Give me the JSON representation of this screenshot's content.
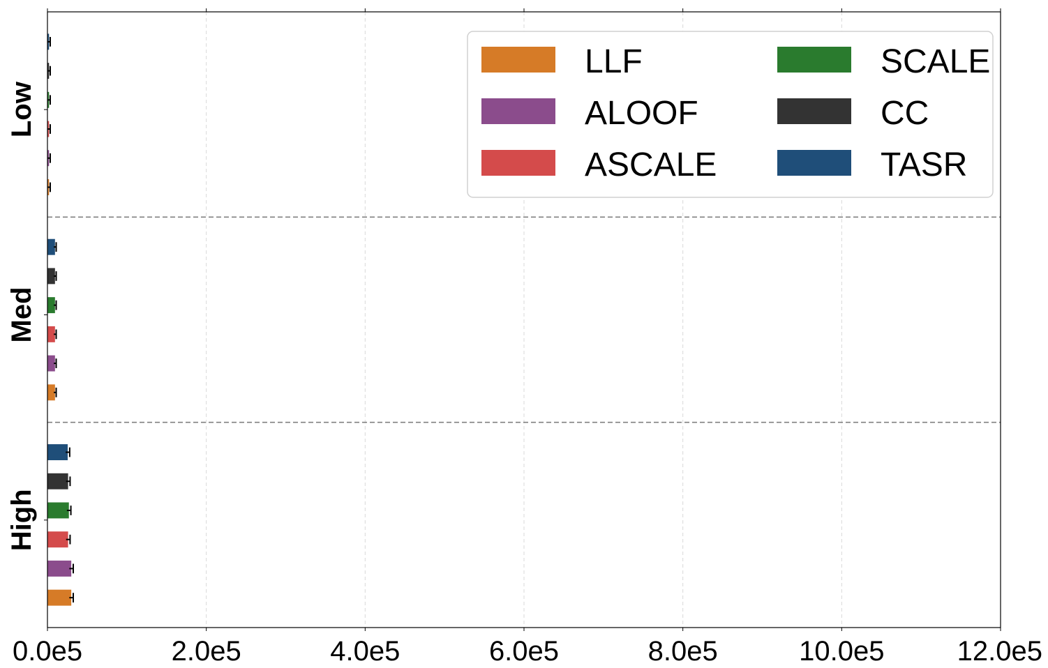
{
  "chart_data": {
    "type": "bar",
    "orientation": "horizontal",
    "title": "",
    "xlabel": "",
    "ylabel": "",
    "xlim": [
      0,
      1200000
    ],
    "x_ticks": [
      {
        "value": 0,
        "label": "0.0e5"
      },
      {
        "value": 200000,
        "label": "2.0e5"
      },
      {
        "value": 400000,
        "label": "4.0e5"
      },
      {
        "value": 600000,
        "label": "6.0e5"
      },
      {
        "value": 800000,
        "label": "8.0e5"
      },
      {
        "value": 1000000,
        "label": "10.0e5"
      },
      {
        "value": 1200000,
        "label": "12.0e5"
      }
    ],
    "grid": "x-dashed",
    "legend_position": "top-right",
    "legend_columns": 2,
    "categories": [
      "Low",
      "Med",
      "High"
    ],
    "series": [
      {
        "name": "LLF",
        "color": "#D67B27",
        "values": [
          2000,
          9500,
          30000
        ],
        "errors": [
          1500,
          1500,
          2500
        ]
      },
      {
        "name": "ALOOF",
        "color": "#8B4C8C",
        "values": [
          2000,
          9500,
          30000
        ],
        "errors": [
          1500,
          1500,
          2500
        ]
      },
      {
        "name": "ASCALE",
        "color": "#D44B4B",
        "values": [
          2000,
          9500,
          26000
        ],
        "errors": [
          1500,
          1500,
          2500
        ]
      },
      {
        "name": "SCALE",
        "color": "#2A7B2E",
        "values": [
          2000,
          9500,
          27000
        ],
        "errors": [
          1500,
          1500,
          2500
        ]
      },
      {
        "name": "CC",
        "color": "#333333",
        "values": [
          2000,
          9500,
          26000
        ],
        "errors": [
          1500,
          1500,
          2500
        ]
      },
      {
        "name": "TASR",
        "color": "#1F4E79",
        "values": [
          2000,
          9500,
          25500
        ],
        "errors": [
          1500,
          1500,
          2500
        ]
      }
    ]
  }
}
